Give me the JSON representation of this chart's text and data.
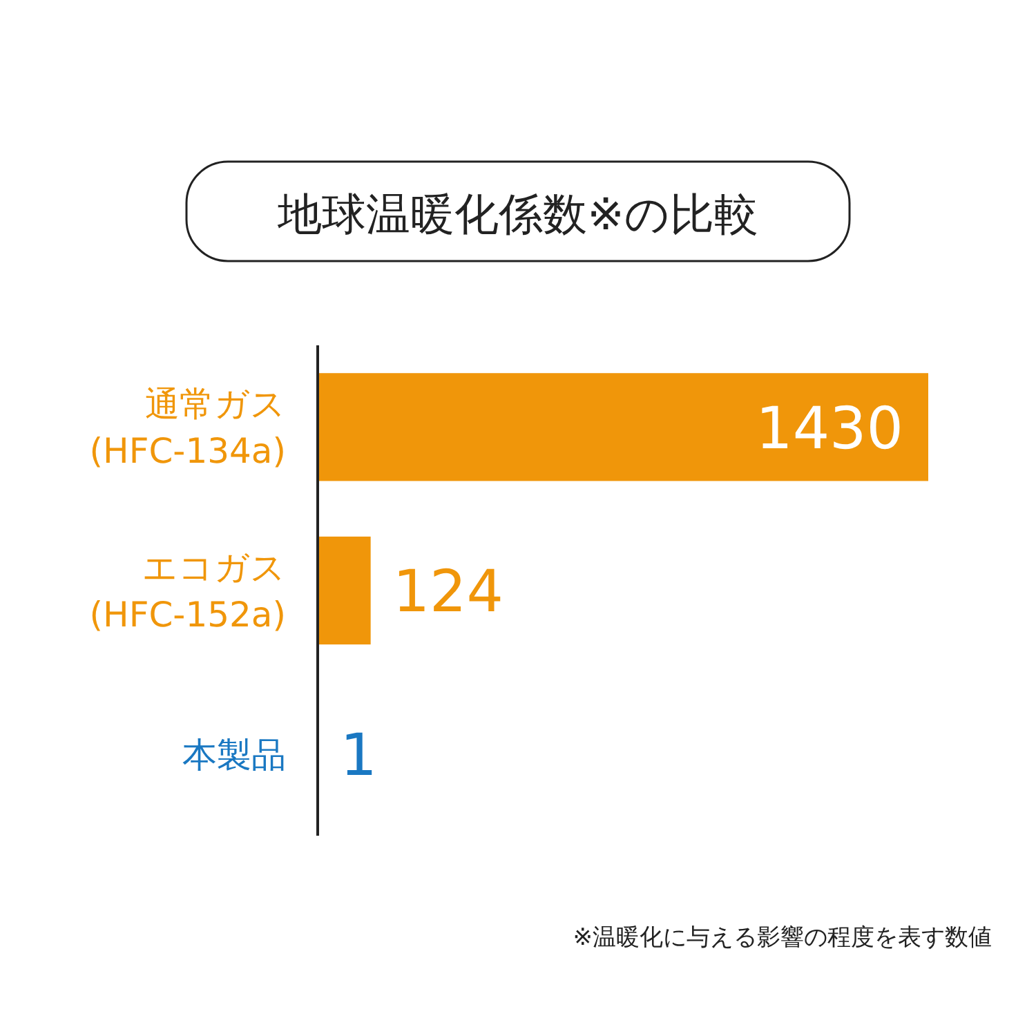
{
  "chart_data": {
    "type": "bar",
    "orientation": "horizontal",
    "title": "地球温暖化係数※の比較",
    "categories": [
      "通常ガス\n(HFC-134a)",
      "エコガス\n(HFC-152a)",
      "本製品"
    ],
    "values": [
      1430,
      124,
      1
    ],
    "colors": [
      "#f0960a",
      "#f0960a",
      "#1a78c2"
    ],
    "data_labels": true,
    "annotations": [
      "※温暖化に与える影響の程度を表す数値"
    ]
  }
}
